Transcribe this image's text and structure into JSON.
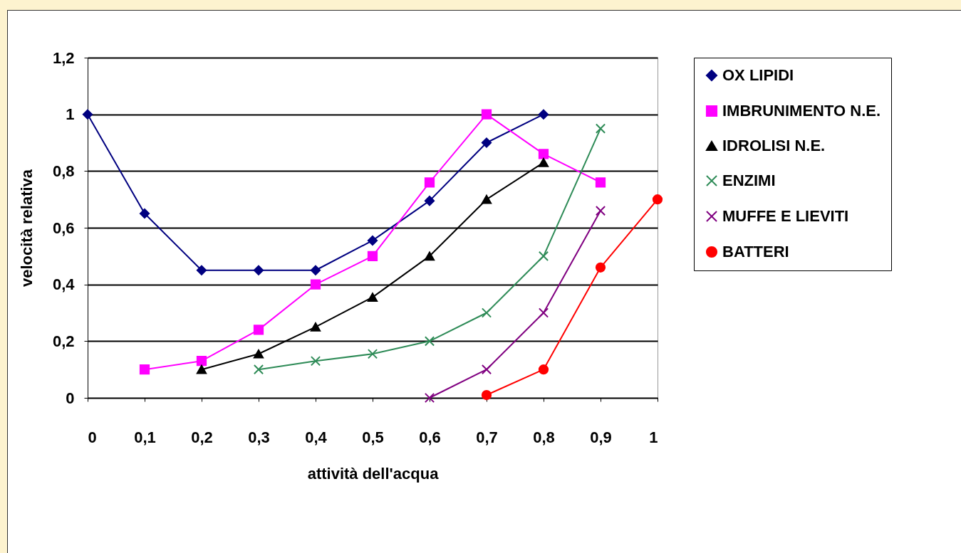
{
  "chart_data": {
    "type": "line",
    "xlabel": "attività dell'acqua",
    "ylabel": "velocità relativa",
    "x": [
      0,
      0.1,
      0.2,
      0.3,
      0.4,
      0.5,
      0.6,
      0.7,
      0.8,
      0.9,
      1
    ],
    "xlim": [
      0,
      1
    ],
    "ylim": [
      0,
      1.2
    ],
    "xticks": [
      0,
      {
        "value": 0.1,
        "label": "0,1"
      },
      {
        "value": 0.2,
        "label": "0,2"
      },
      {
        "value": 0.3,
        "label": "0,3"
      },
      {
        "value": 0.4,
        "label": "0,4"
      },
      {
        "value": 0.5,
        "label": "0,5"
      },
      {
        "value": 0.6,
        "label": "0,6"
      },
      {
        "value": 0.7,
        "label": "0,7"
      },
      {
        "value": 0.8,
        "label": "0,8"
      },
      {
        "value": 0.9,
        "label": "0,9"
      },
      1
    ],
    "yticks": [
      0,
      {
        "value": 0.2,
        "label": "0,2"
      },
      {
        "value": 0.4,
        "label": "0,4"
      },
      {
        "value": 0.6,
        "label": "0,6"
      },
      {
        "value": 0.8,
        "label": "0,8"
      },
      1,
      {
        "value": 1.2,
        "label": "1,2"
      }
    ],
    "grid": "y",
    "legend": "right",
    "series": [
      {
        "name": "OX LIPIDI",
        "color": "#000080",
        "marker": "diamond",
        "values": [
          1,
          0.65,
          0.45,
          0.45,
          0.45,
          0.555,
          0.695,
          0.9,
          1,
          null,
          null
        ]
      },
      {
        "name": "IMBRUNIMENTO N.E.",
        "color": "#ff00ff",
        "marker": "square",
        "values": [
          null,
          0.1,
          0.13,
          0.24,
          0.4,
          0.5,
          0.76,
          1.0,
          0.86,
          0.76,
          null
        ]
      },
      {
        "name": "IDROLISI N.E.",
        "color": "#000000",
        "marker": "triangle",
        "values": [
          null,
          null,
          0.1,
          0.155,
          0.25,
          0.355,
          0.5,
          0.7,
          0.83,
          null,
          null
        ]
      },
      {
        "name": "ENZIMI",
        "color": "#2e8b57",
        "marker": "cross",
        "values": [
          null,
          null,
          null,
          0.1,
          0.13,
          0.155,
          0.2,
          0.3,
          0.5,
          0.95,
          null
        ]
      },
      {
        "name": "MUFFE E LIEVITI",
        "color": "#800080",
        "marker": "cross",
        "values": [
          null,
          null,
          null,
          null,
          null,
          null,
          0,
          0.1,
          0.3,
          0.66,
          null
        ]
      },
      {
        "name": "BATTERI",
        "color": "#ff0000",
        "marker": "circle",
        "values": [
          null,
          null,
          null,
          null,
          null,
          null,
          null,
          0.01,
          0.1,
          0.46,
          0.7
        ]
      }
    ]
  }
}
